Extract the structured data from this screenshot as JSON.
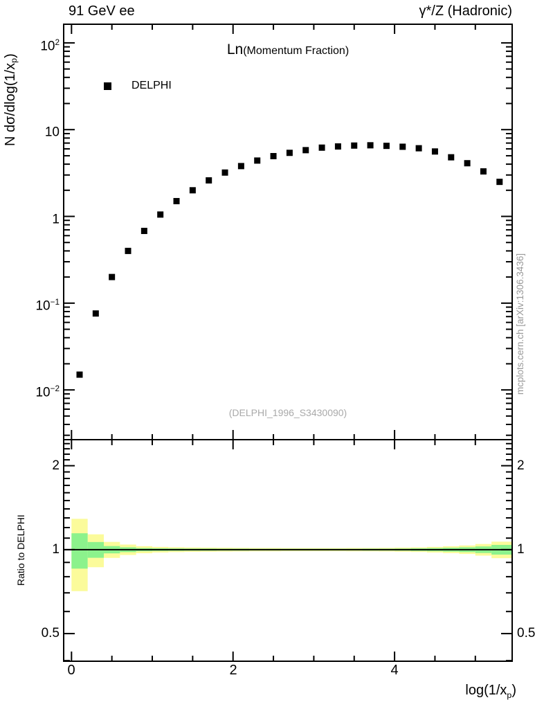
{
  "header": {
    "left": "91 GeV ee",
    "right": "γ*/Z (Hadronic)"
  },
  "title": {
    "big": "Ln",
    "small": "(Momentum Fraction)"
  },
  "legend": {
    "label": "DELPHI",
    "marker": "filled-black-square"
  },
  "watermark": "(DELPHI_1996_S3430090)",
  "side_note": "mcplots.cern.ch [arXiv:1306.3436]",
  "axes": {
    "y_label": {
      "pre": "N dσ/dlog(1/x",
      "sub": "p",
      "post": ")"
    },
    "x_label": {
      "pre": "log(1/x",
      "sub": "p",
      "post": ")"
    },
    "ratio_label": "Ratio to DELPHI",
    "main_y_ticks": [
      {
        "base": "10",
        "exp": "2"
      },
      {
        "base": "10",
        "exp": ""
      },
      {
        "base": "1",
        "exp": ""
      },
      {
        "base": "10",
        "exp": "−1"
      },
      {
        "base": "10",
        "exp": "−2"
      }
    ],
    "ratio_y_ticks": [
      "2",
      "1",
      "0.5"
    ],
    "x_tick_labels": [
      "0",
      "2",
      "4"
    ]
  },
  "colors": {
    "marker": "#000000",
    "band_outer": "#fbfb9b",
    "band_inner": "#8cf28c",
    "frame": "#000000",
    "watermark": "#a9a9a9",
    "side_note": "#999999"
  },
  "chart_data": [
    {
      "type": "scatter",
      "panel": "main",
      "title": "Ln(Momentum Fraction)",
      "x_label": "log(1/x_p)",
      "y_label": "N dσ/dlog(1/x_p)",
      "y_scale": "log",
      "x_range": [
        -0.097,
        5.456
      ],
      "y_range_log": [
        0.00267,
        164
      ],
      "x_major_ticks": [
        0,
        2,
        4
      ],
      "x_minor_step": 0.5,
      "y_major_ticks": [
        100,
        10,
        1,
        0.1,
        0.01
      ],
      "grid": false,
      "legend_position": "top-left-inside",
      "series": [
        {
          "name": "DELPHI",
          "marker": "filled-square",
          "color": "#000000",
          "x": [
            0.1,
            0.3,
            0.5,
            0.7,
            0.9,
            1.1,
            1.3,
            1.5,
            1.7,
            1.9,
            2.1,
            2.3,
            2.5,
            2.7,
            2.9,
            3.1,
            3.3,
            3.5,
            3.7,
            3.9,
            4.1,
            4.3,
            4.5,
            4.7,
            4.9,
            5.1,
            5.3
          ],
          "y": [
            0.015,
            0.076,
            0.2,
            0.4,
            0.68,
            1.05,
            1.5,
            2.0,
            2.6,
            3.2,
            3.8,
            4.4,
            4.95,
            5.4,
            5.8,
            6.2,
            6.4,
            6.55,
            6.6,
            6.5,
            6.35,
            6.1,
            5.6,
            4.8,
            4.1,
            3.3,
            2.5
          ]
        }
      ]
    },
    {
      "type": "ratio-band",
      "panel": "ratio",
      "y_label": "Ratio to DELPHI",
      "y_scale": "log",
      "x_range": [
        -0.097,
        5.456
      ],
      "y_range_log": [
        0.398,
        2.48
      ],
      "y_major_ticks": [
        2,
        1,
        0.5
      ],
      "reference_line": 1,
      "bin_edges": [
        0,
        0.2,
        0.4,
        0.6,
        0.8,
        1.0,
        1.2,
        1.4,
        1.6,
        1.8,
        2.0,
        2.2,
        2.4,
        2.6,
        2.8,
        3.0,
        3.2,
        3.4,
        3.6,
        3.8,
        4.0,
        4.2,
        4.4,
        4.6,
        4.8,
        5.0,
        5.2,
        5.46
      ],
      "bands": [
        {
          "name": "outer-uncertainty",
          "color": "#fbfb9b",
          "half_width": [
            0.29,
            0.135,
            0.066,
            0.043,
            0.029,
            0.023,
            0.02,
            0.018,
            0.017,
            0.016,
            0.015,
            0.014,
            0.014,
            0.013,
            0.013,
            0.013,
            0.013,
            0.014,
            0.014,
            0.015,
            0.017,
            0.019,
            0.023,
            0.028,
            0.035,
            0.048,
            0.068
          ]
        },
        {
          "name": "inner-uncertainty",
          "color": "#8cf28c",
          "half_width": [
            0.145,
            0.065,
            0.03,
            0.02,
            0.013,
            0.011,
            0.01,
            0.009,
            0.009,
            0.008,
            0.008,
            0.007,
            0.007,
            0.007,
            0.007,
            0.007,
            0.007,
            0.007,
            0.008,
            0.008,
            0.009,
            0.011,
            0.013,
            0.016,
            0.02,
            0.027,
            0.04
          ]
        }
      ]
    }
  ]
}
